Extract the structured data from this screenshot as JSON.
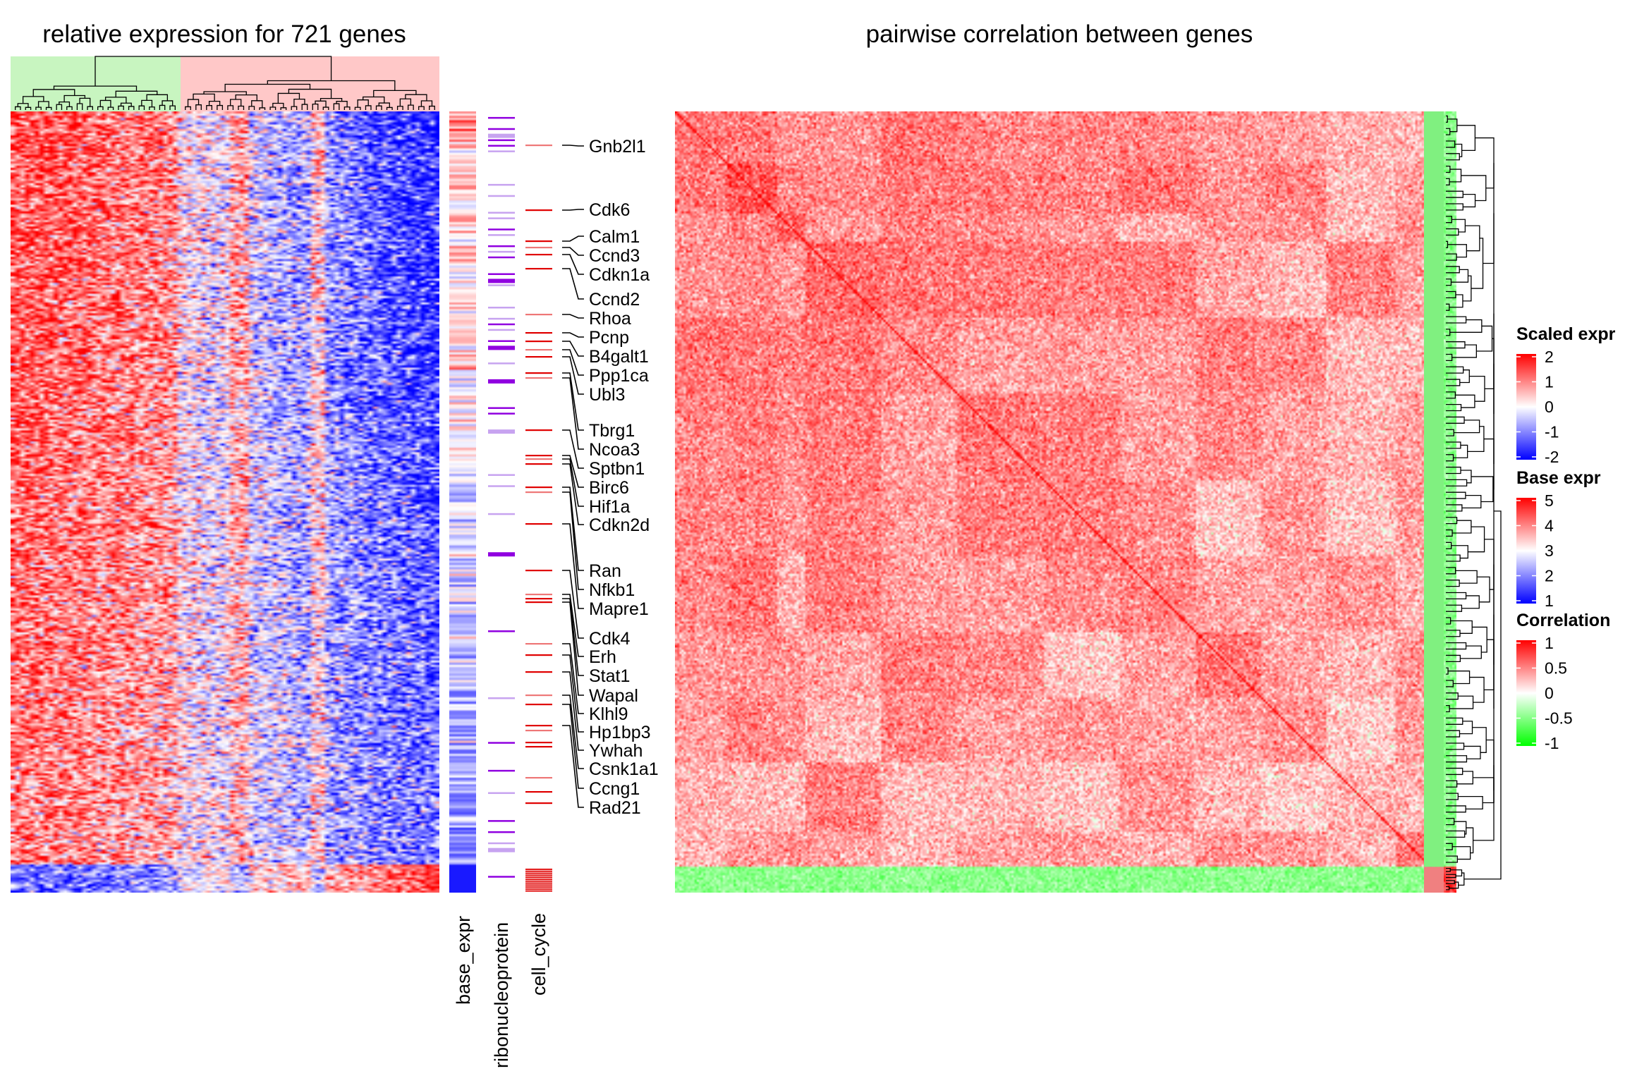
{
  "chart_data": [
    {
      "type": "heatmap",
      "title": "relative expression for 721 genes",
      "rows": 721,
      "column_clusters": [
        {
          "color": "#c8f5c0",
          "share": 0.39
        },
        {
          "color": "#ffc8c8",
          "share": 0.61
        }
      ],
      "color_scale": {
        "title": "Scaled expr",
        "ticks": [
          2,
          1,
          0,
          -1,
          -2
        ],
        "colors": [
          "#ff0000",
          "#ffffff",
          "#0000ff"
        ],
        "range": [
          -2,
          2
        ]
      },
      "annotation_tracks": [
        {
          "label": "base_expr",
          "type": "continuous"
        },
        {
          "label": "ribonucleoprotein",
          "type": "binary",
          "color": "#9000e0"
        },
        {
          "label": "cell_cycle",
          "type": "binary",
          "color": "#e00000"
        }
      ],
      "labeled_genes": [
        "Gnb2l1",
        "Cdk6",
        "Calm1",
        "Ccnd3",
        "Cdkn1a",
        "Ccnd2",
        "Rhoa",
        "Pcnp",
        "B4galt1",
        "Ppp1ca",
        "Ubl3",
        "Tbrg1",
        "Ncoa3",
        "Sptbn1",
        "Birc6",
        "Hif1a",
        "Cdkn2d",
        "Ran",
        "Nfkb1",
        "Mapre1",
        "Cdk4",
        "Erh",
        "Stat1",
        "Wapal",
        "Klhl9",
        "Hp1bp3",
        "Ywhah",
        "Csnk1a1",
        "Ccng1",
        "Rad21"
      ]
    },
    {
      "type": "heatmap",
      "title": "pairwise correlation between genes",
      "rows": 721,
      "columns": 721,
      "row_clusters": [
        {
          "color": "#80f080",
          "share": 0.967
        },
        {
          "color": "#f08080",
          "share": 0.033
        }
      ]
    }
  ],
  "legends": [
    {
      "title": "Scaled expr",
      "ticks": [
        "2",
        "1",
        "0",
        "-1",
        "-2"
      ],
      "colors": [
        "#ff0000",
        "#ffffff",
        "#0000ff"
      ]
    },
    {
      "title": "Base expr",
      "ticks": [
        "5",
        "4",
        "3",
        "2",
        "1"
      ],
      "colors": [
        "#ff0000",
        "#ffffff",
        "#0000ff"
      ]
    },
    {
      "title": "Correlation",
      "ticks": [
        "1",
        "0.5",
        "0",
        "-0.5",
        "-1"
      ],
      "colors": [
        "#ff0000",
        "#ffffff",
        "#00ff00"
      ]
    }
  ]
}
